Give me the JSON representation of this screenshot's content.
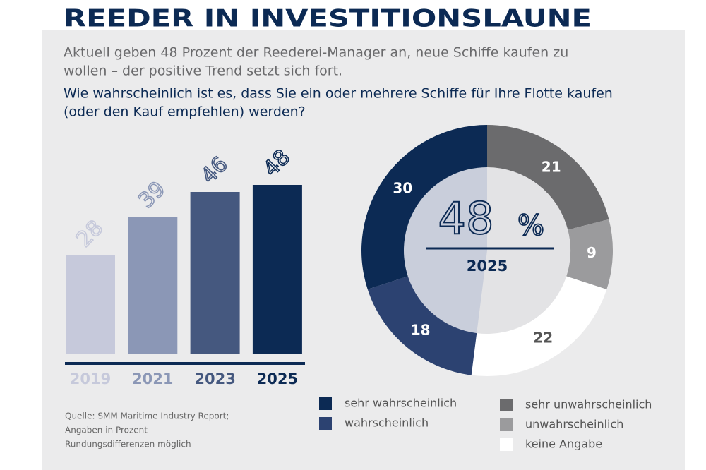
{
  "header": {
    "title": "REEDER IN INVESTITIONSLAUNE",
    "subtitle": [
      "Aktuell geben 48 Prozent der Reederei-Manager an, neue Schiffe kaufen zu",
      "wollen – der positive Trend setzt sich fort."
    ],
    "question": [
      "Wie wahrscheinlich ist es, dass Sie ein oder mehrere Schiffe für Ihre Flotte kaufen",
      "(oder den Kauf empfehlen) werden?"
    ]
  },
  "chart_data": [
    {
      "type": "bar",
      "categories": [
        "2019",
        "2021",
        "2023",
        "2025"
      ],
      "values": [
        28,
        39,
        46,
        48
      ],
      "colors": [
        "#c6c9db",
        "#8b97b6",
        "#45587f",
        "#0c2a54"
      ]
    },
    {
      "type": "pie",
      "categories": [
        "sehr unwahrscheinlich",
        "unwahrscheinlich",
        "keine Angabe",
        "wahrscheinlich",
        "sehr wahrscheinlich"
      ],
      "values": [
        21,
        9,
        22,
        18,
        30
      ],
      "colors": [
        "#6b6b6d",
        "#9b9b9d",
        "#ffffff",
        "#2c4271",
        "#0c2a54"
      ],
      "center_value": 48,
      "center_unit": "%",
      "center_year": "2025"
    }
  ],
  "source": [
    "Quelle: SMM Maritime Industry Report;",
    "Angaben in Prozent",
    "Rundungsdifferenzen möglich"
  ]
}
